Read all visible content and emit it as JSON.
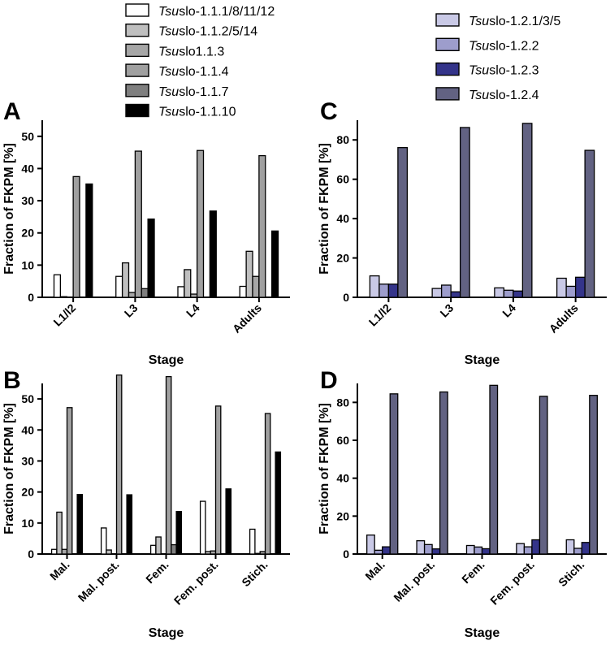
{
  "legends": {
    "left": [
      {
        "prefix": "Tsu",
        "suffix": "slo-1.1.1/8/11/12",
        "color": "#ffffff"
      },
      {
        "prefix": "Tsu",
        "suffix": "slo-1.1.2/5/14",
        "color": "#bfbfbf"
      },
      {
        "prefix": "Tsu",
        "suffix": "slo1.1.3",
        "color": "#a6a6a6"
      },
      {
        "prefix": "Tsu",
        "suffix": "slo-1.1.4",
        "color": "#a0a0a0"
      },
      {
        "prefix": "Tsu",
        "suffix": "slo-1.1.7",
        "color": "#7f7f7f"
      },
      {
        "prefix": "Tsu",
        "suffix": "slo-1.1.10",
        "color": "#000000"
      }
    ],
    "right": [
      {
        "prefix": "Tsu",
        "suffix": "slo-1.2.1/3/5",
        "color": "#c9c9e6"
      },
      {
        "prefix": "Tsu",
        "suffix": "slo-1.2.2",
        "color": "#9d9dcc"
      },
      {
        "prefix": "Tsu",
        "suffix": "slo-1.2.3",
        "color": "#34348a"
      },
      {
        "prefix": "Tsu",
        "suffix": "slo-1.2.4",
        "color": "#626282"
      }
    ]
  },
  "chart_data": [
    {
      "panel": "A",
      "type": "bar",
      "ylabel": "Fraction of FKPM [%]",
      "xlabel": "Stage",
      "ylim": [
        0,
        55
      ],
      "yticks": [
        0,
        10,
        20,
        30,
        40,
        50
      ],
      "categories": [
        "L1/l2",
        "L3",
        "L4",
        "Adults"
      ],
      "series": [
        {
          "name": "Tsuslo-1.1.1/8/11/12",
          "values": [
            7.0,
            6.5,
            3.3,
            3.4
          ]
        },
        {
          "name": "Tsuslo-1.1.2/5/14",
          "values": [
            0.2,
            10.7,
            8.6,
            14.3
          ]
        },
        {
          "name": "Tsuslo1.1.3",
          "values": [
            0.0,
            1.5,
            1.0,
            6.5
          ]
        },
        {
          "name": "Tsuslo-1.1.4",
          "values": [
            37.5,
            45.4,
            45.6,
            44.0
          ]
        },
        {
          "name": "Tsuslo-1.1.7",
          "values": [
            0.0,
            2.7,
            0.0,
            0.0
          ]
        },
        {
          "name": "Tsuslo-1.1.10",
          "values": [
            35.2,
            24.3,
            26.8,
            20.6
          ]
        }
      ]
    },
    {
      "panel": "B",
      "type": "bar",
      "ylabel": "Fraction of FKPM [%]",
      "xlabel": "Stage",
      "ylim": [
        0,
        55
      ],
      "yticks": [
        0,
        10,
        20,
        30,
        40,
        50
      ],
      "categories": [
        "Mal.",
        "Mal. post.",
        "Fem.",
        "Fem. post.",
        "Stich."
      ],
      "series": [
        {
          "name": "Tsuslo-1.1.1/8/11/12",
          "values": [
            1.5,
            8.4,
            2.8,
            17.0,
            8.0
          ]
        },
        {
          "name": "Tsuslo-1.1.2/5/14",
          "values": [
            13.5,
            1.3,
            5.5,
            0.8,
            0.2
          ]
        },
        {
          "name": "Tsuslo1.1.3",
          "values": [
            1.5,
            0.0,
            0.0,
            1.0,
            0.8
          ]
        },
        {
          "name": "Tsuslo-1.1.4",
          "values": [
            47.2,
            57.7,
            57.2,
            47.7,
            45.3
          ]
        },
        {
          "name": "Tsuslo-1.1.7",
          "values": [
            0.0,
            0.0,
            3.0,
            0.0,
            0.0
          ]
        },
        {
          "name": "Tsuslo-1.1.10",
          "values": [
            19.2,
            19.1,
            13.7,
            21.0,
            32.9
          ]
        }
      ]
    },
    {
      "panel": "C",
      "type": "bar",
      "ylabel": "Fraction of FKPM [%]",
      "xlabel": "Stage",
      "ylim": [
        0,
        90
      ],
      "yticks": [
        0,
        20,
        40,
        60,
        80
      ],
      "categories": [
        "L1/l2",
        "L3",
        "L4",
        "Adults"
      ],
      "series": [
        {
          "name": "Tsuslo-1.2.1/3/5",
          "values": [
            10.9,
            4.5,
            4.8,
            9.7
          ]
        },
        {
          "name": "Tsuslo-1.2.2",
          "values": [
            6.7,
            6.2,
            3.6,
            5.6
          ]
        },
        {
          "name": "Tsuslo-1.2.3",
          "values": [
            6.7,
            2.8,
            3.2,
            10.2
          ]
        },
        {
          "name": "Tsuslo-1.2.4",
          "values": [
            76.1,
            86.3,
            88.4,
            74.7
          ]
        }
      ]
    },
    {
      "panel": "D",
      "type": "bar",
      "ylabel": "Fraction of FKPM [%]",
      "xlabel": "Stage",
      "ylim": [
        0,
        90
      ],
      "yticks": [
        0,
        20,
        40,
        60,
        80
      ],
      "categories": [
        "Mal.",
        "Mal. post.",
        "Fem.",
        "Fem. post.",
        "Stich."
      ],
      "series": [
        {
          "name": "Tsuslo-1.2.1/3/5",
          "values": [
            10.0,
            7.0,
            4.5,
            5.5,
            7.5
          ]
        },
        {
          "name": "Tsuslo-1.2.2",
          "values": [
            2.0,
            5.0,
            3.7,
            3.8,
            3.0
          ]
        },
        {
          "name": "Tsuslo-1.2.3",
          "values": [
            3.8,
            2.7,
            2.8,
            7.5,
            6.1
          ]
        },
        {
          "name": "Tsuslo-1.2.4",
          "values": [
            84.5,
            85.5,
            89.0,
            83.2,
            83.7
          ]
        }
      ]
    }
  ]
}
